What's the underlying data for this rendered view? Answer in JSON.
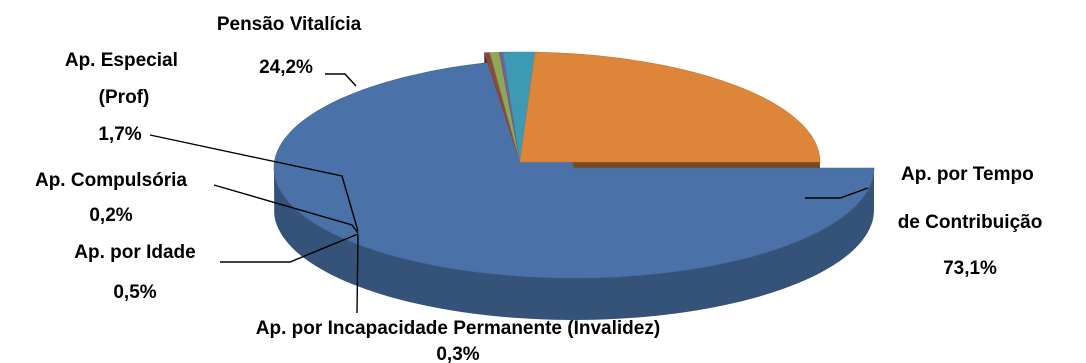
{
  "chart_data": {
    "type": "pie",
    "style": "3d-exploded",
    "title": "",
    "slices": [
      {
        "name": "Ap. por Tempo de Contribuição",
        "label_lines": [
          "Ap. por Tempo",
          "de Contribuição"
        ],
        "value": 73.1,
        "value_label": "73,1%",
        "color": "#4A72A8"
      },
      {
        "name": "Ap. por Incapacidade Permanente (Invalidez)",
        "label_lines": [
          "Ap. por Incapacidade Permanente (Invalidez)"
        ],
        "value": 0.3,
        "value_label": "0,3%",
        "color": "#8A4A40"
      },
      {
        "name": "Ap. por Idade",
        "label_lines": [
          "Ap. por Idade"
        ],
        "value": 0.5,
        "value_label": "0,5%",
        "color": "#8FA857"
      },
      {
        "name": "Ap. Compulsória",
        "label_lines": [
          "Ap. Compulsória"
        ],
        "value": 0.2,
        "value_label": "0,2%",
        "color": "#7A5F96"
      },
      {
        "name": "Ap. Especial (Prof)",
        "label_lines": [
          "Ap. Especial",
          "(Prof)"
        ],
        "value": 1.7,
        "value_label": "1,7%",
        "color": "#3E9AB4"
      },
      {
        "name": "Pensão Vitalícia",
        "label_lines": [
          "Pensão Vitalícia"
        ],
        "value": 24.2,
        "value_label": "24,2%",
        "color": "#DD8539"
      }
    ]
  }
}
